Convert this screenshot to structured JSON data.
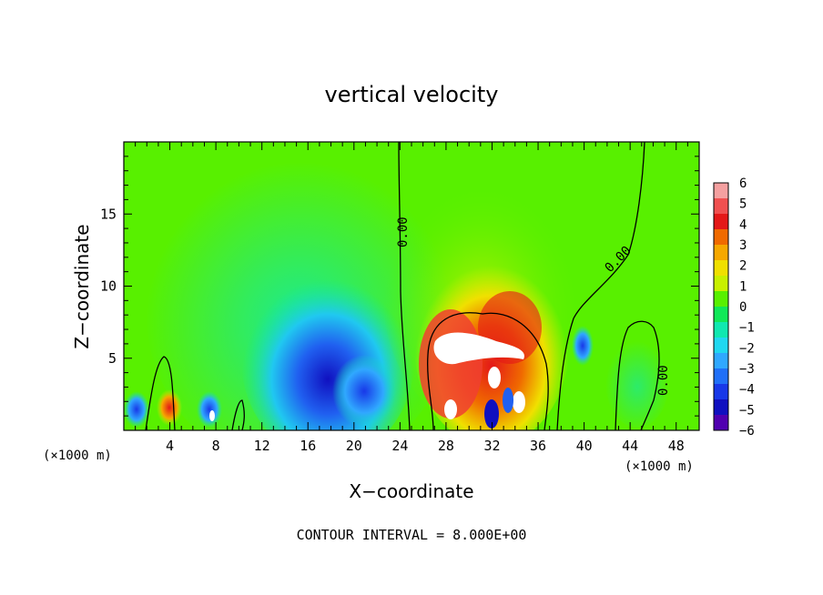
{
  "chart_data": {
    "type": "heatmap",
    "title": "vertical velocity",
    "xlabel": "X−coordinate",
    "ylabel": "Z−coordinate",
    "x_unit_label": "(×1000 m)",
    "x_unit_label_right": "(×1000 m)",
    "x_ticks": [
      "4",
      "8",
      "12",
      "16",
      "20",
      "24",
      "28",
      "32",
      "36",
      "40",
      "44",
      "48"
    ],
    "y_ticks": [
      "5",
      "10",
      "15"
    ],
    "xlim": [
      0,
      50
    ],
    "ylim": [
      0,
      20
    ],
    "contour_labels": [
      "0.00",
      "0.00",
      "0.00"
    ],
    "footer": "CONTOUR INTERVAL = 8.000E+00",
    "colorbar": {
      "ticks": [
        "6",
        "5",
        "4",
        "3",
        "2",
        "1",
        "0",
        "−1",
        "−2",
        "−3",
        "−4",
        "−5",
        "−6"
      ],
      "colors": [
        "#f4a0a0",
        "#f05050",
        "#e41818",
        "#f06a00",
        "#f6a800",
        "#f0e000",
        "#c8f000",
        "#58f000",
        "#10e858",
        "#10e8b0",
        "#20d8f0",
        "#30a8ff",
        "#2070f8",
        "#1838e8",
        "#1010c0",
        "#5000b0"
      ]
    }
  }
}
